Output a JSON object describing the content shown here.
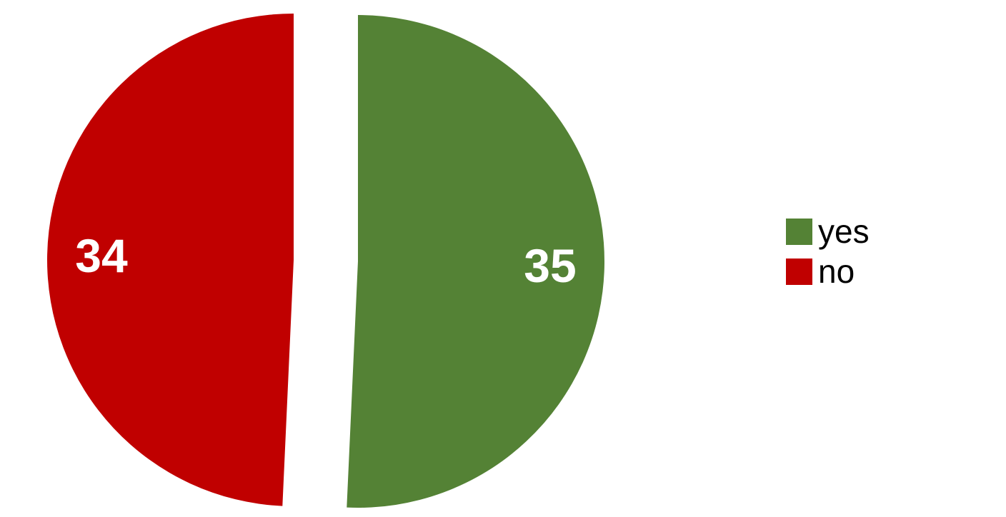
{
  "chart_data": {
    "type": "pie",
    "categories": [
      "yes",
      "no"
    ],
    "values": [
      35,
      34
    ],
    "colors": [
      "#548235",
      "#C00000"
    ],
    "data_labels": [
      "35",
      "34"
    ],
    "exploded": true,
    "legend_position": "right"
  },
  "legend": {
    "items": [
      {
        "label": "yes",
        "color": "#548235"
      },
      {
        "label": "no",
        "color": "#C00000"
      }
    ]
  }
}
